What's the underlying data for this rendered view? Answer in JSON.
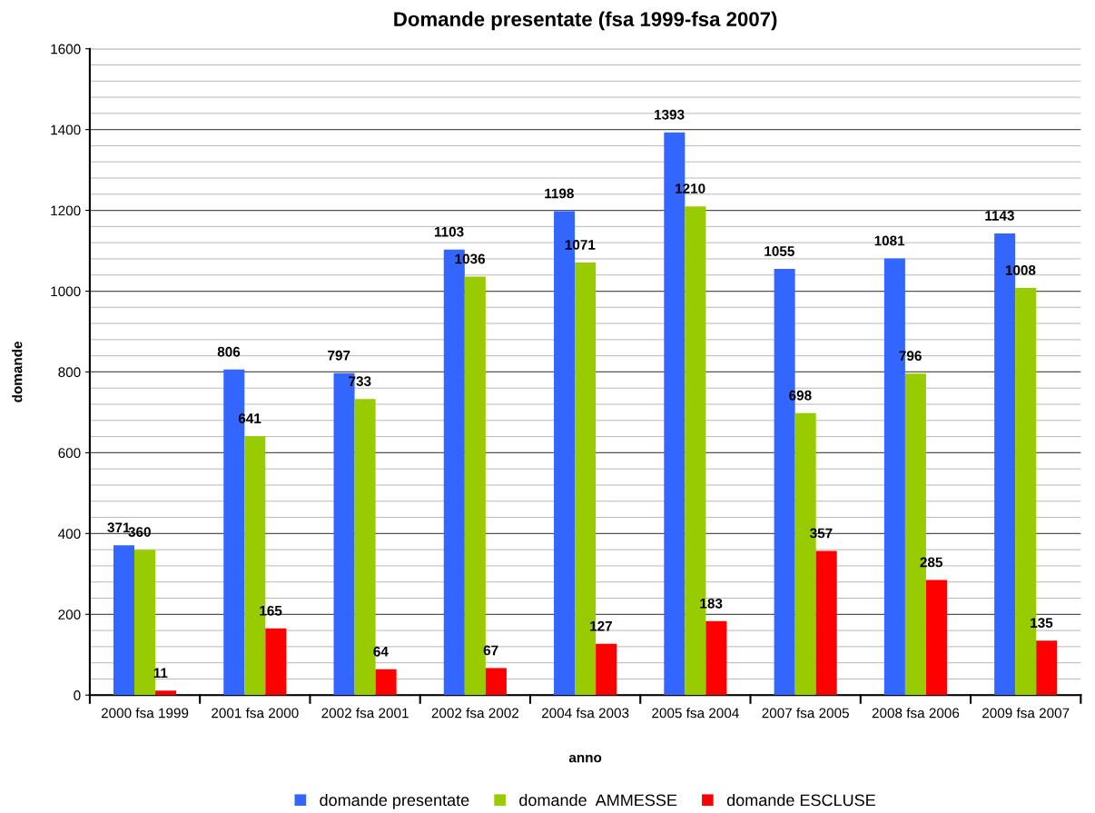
{
  "chart_data": {
    "type": "bar",
    "title": "Domande presentate (fsa 1999-fsa 2007)",
    "xlabel": "anno",
    "ylabel": "domande",
    "categories": [
      "2000 fsa 1999",
      "2001 fsa 2000",
      "2002 fsa 2001",
      "2002 fsa 2002",
      "2004 fsa 2003",
      "2005 fsa 2004",
      "2007 fsa 2005",
      "2008 fsa 2006",
      "2009 fsa 2007"
    ],
    "series": [
      {
        "name": "domande presentate",
        "color": "#3366ff",
        "values": [
          371,
          806,
          797,
          1103,
          1198,
          1393,
          1055,
          1081,
          1143
        ]
      },
      {
        "name": "domande  AMMESSE",
        "color": "#99cc00",
        "values": [
          360,
          641,
          733,
          1036,
          1071,
          1210,
          698,
          796,
          1008
        ]
      },
      {
        "name": "domande ESCLUSE",
        "color": "#ff0000",
        "values": [
          11,
          165,
          64,
          67,
          127,
          183,
          357,
          285,
          135
        ]
      }
    ],
    "ylim": [
      0,
      1600
    ],
    "yticks": [
      0,
      200,
      400,
      600,
      800,
      1000,
      1200,
      1400,
      1600
    ],
    "grid": "y",
    "legend": "bottom",
    "data_labels": true
  }
}
